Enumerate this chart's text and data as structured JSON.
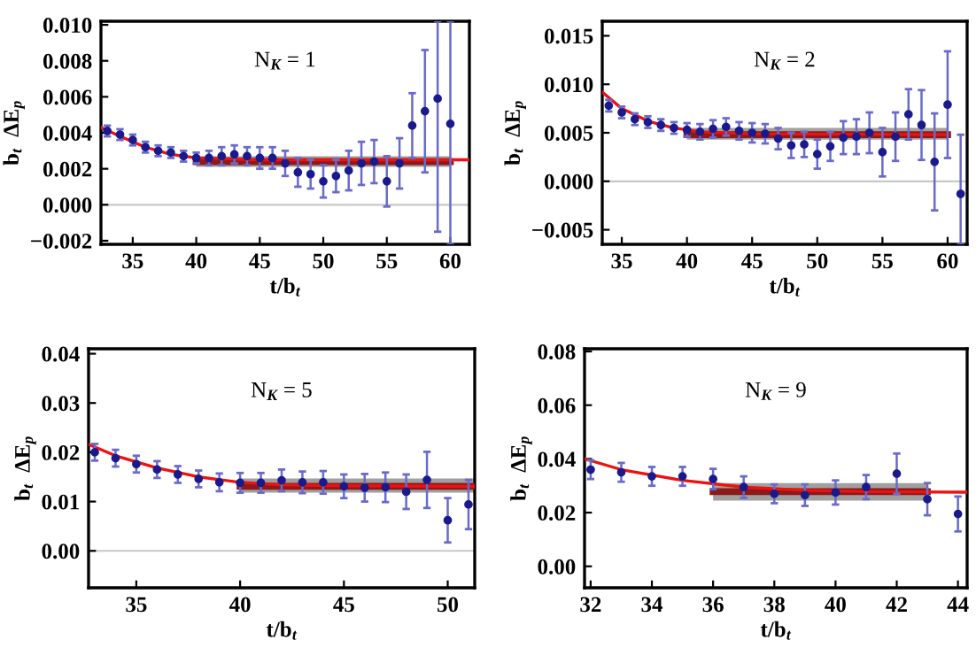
{
  "chart_data": [
    {
      "type": "scatter",
      "xlabel": "t/b$_{t}$",
      "ylabel": "b$_{t}$  ΔE$_{p}$",
      "annotations": [
        "N$_{K}$ = 1"
      ],
      "xlim": [
        32.5,
        61.5
      ],
      "ylim": [
        -0.0022,
        0.0102
      ],
      "xticks": [
        35,
        40,
        45,
        50,
        55,
        60
      ],
      "yticks": [
        {
          "value": -0.002,
          "label": "−0.002"
        },
        {
          "value": 0,
          "label": "0.000"
        },
        {
          "value": 0.002,
          "label": "0.002"
        },
        {
          "value": 0.004,
          "label": "0.004"
        },
        {
          "value": 0.006,
          "label": "0.006"
        },
        {
          "value": 0.008,
          "label": "0.008"
        },
        {
          "value": 0.01,
          "label": "0.010"
        }
      ],
      "grid": false,
      "ref_lines": [
        {
          "axis": "y",
          "value": 0,
          "color": "#c8c8c8"
        }
      ],
      "series": [
        {
          "type": "line",
          "color": "#8b1a1a",
          "x": [
            40,
            60
          ],
          "values": [
            0.0024,
            0.0024
          ],
          "lower": [
            0.0021,
            0.0021
          ],
          "upper": [
            0.0027,
            0.0027
          ]
        },
        {
          "type": "line",
          "color": "#ee1111",
          "x": [
            32.5,
            34,
            36,
            38,
            40,
            45,
            61.5
          ],
          "values": [
            0.0043,
            0.0038,
            0.0032,
            0.0028,
            0.0026,
            0.0025,
            0.0025
          ]
        },
        {
          "color": "#1a1a8c",
          "marker": "circle",
          "x": [
            33,
            34,
            35,
            36,
            37,
            38,
            39,
            40,
            41,
            42,
            43,
            44,
            45,
            46,
            47,
            48,
            49,
            50,
            51,
            52,
            53,
            54,
            55,
            56,
            57,
            58,
            59,
            60
          ],
          "values": [
            0.0041,
            0.0039,
            0.0036,
            0.0032,
            0.003,
            0.0029,
            0.0027,
            0.0026,
            0.0026,
            0.0027,
            0.0028,
            0.0027,
            0.0026,
            0.0026,
            0.0023,
            0.0018,
            0.0017,
            0.0013,
            0.0016,
            0.0019,
            0.0023,
            0.0024,
            0.0013,
            0.0023,
            0.0044,
            0.0052,
            0.0059,
            0.0045
          ],
          "errors": [
            0.0003,
            0.0003,
            0.0003,
            0.0003,
            0.0003,
            0.0003,
            0.0003,
            0.0003,
            0.0004,
            0.0005,
            0.0005,
            0.0005,
            0.0006,
            0.0006,
            0.0007,
            0.0008,
            0.0008,
            0.0009,
            0.0009,
            0.0011,
            0.0012,
            0.0012,
            0.0014,
            0.0014,
            0.0018,
            0.0034,
            [
              -0.0015,
              0.0102
            ],
            [
              -0.0022,
              0.0102
            ]
          ]
        }
      ]
    },
    {
      "type": "scatter",
      "xlabel": "t/b$_{t}$",
      "ylabel": "b$_{t}$  ΔE$_{p}$",
      "annotations": [
        "N$_{K}$ = 2"
      ],
      "xlim": [
        33.5,
        61.5
      ],
      "ylim": [
        -0.0065,
        0.0165
      ],
      "xticks": [
        35,
        40,
        45,
        50,
        55,
        60
      ],
      "yticks": [
        {
          "value": -0.005,
          "label": "−0.005"
        },
        {
          "value": 0,
          "label": "0.000"
        },
        {
          "value": 0.005,
          "label": "0.005"
        },
        {
          "value": 0.01,
          "label": "0.010"
        },
        {
          "value": 0.015,
          "label": "0.015"
        }
      ],
      "grid": false,
      "ref_lines": [
        {
          "axis": "y",
          "value": 0,
          "color": "#c8c8c8"
        }
      ],
      "series": [
        {
          "type": "line",
          "color": "#8b1a1a",
          "x": [
            40,
            60
          ],
          "values": [
            0.0048,
            0.0048
          ],
          "lower": [
            0.0043,
            0.0043
          ],
          "upper": [
            0.0055,
            0.0055
          ]
        },
        {
          "type": "line",
          "color": "#ee1111",
          "x": [
            33.5,
            35,
            37,
            39,
            41,
            45,
            60
          ],
          "values": [
            0.0092,
            0.0075,
            0.0062,
            0.0055,
            0.0051,
            0.0049,
            0.0048
          ]
        },
        {
          "color": "#1a1a8c",
          "marker": "circle",
          "x": [
            34,
            35,
            36,
            37,
            38,
            39,
            40,
            41,
            42,
            43,
            44,
            45,
            46,
            47,
            48,
            49,
            50,
            51,
            52,
            53,
            54,
            55,
            56,
            57,
            58,
            59,
            60,
            61
          ],
          "values": [
            0.0078,
            0.0071,
            0.0064,
            0.0061,
            0.0058,
            0.0055,
            0.0053,
            0.0051,
            0.0054,
            0.0056,
            0.0052,
            0.005,
            0.0049,
            0.0044,
            0.0037,
            0.0038,
            0.0028,
            0.0036,
            0.0045,
            0.0046,
            0.005,
            0.003,
            0.0046,
            0.0069,
            0.0058,
            0.002,
            0.0079,
            -0.0013
          ],
          "errors": [
            0.0006,
            0.0006,
            0.0006,
            0.0006,
            0.0006,
            0.0006,
            0.0007,
            0.0008,
            0.0009,
            0.0009,
            0.0009,
            0.001,
            0.001,
            0.0011,
            0.0013,
            0.0013,
            0.0015,
            0.0015,
            0.0017,
            0.0018,
            0.0021,
            0.0025,
            0.0025,
            0.0026,
            0.0036,
            0.005,
            0.0055,
            [
              -0.0065,
              0.0048
            ]
          ]
        }
      ]
    },
    {
      "type": "scatter",
      "xlabel": "t/b$_{t}$",
      "ylabel": "b$_{t}$  ΔE$_{p}$",
      "annotations": [
        "N$_{K}$ = 5"
      ],
      "xlim": [
        32.7,
        51.3
      ],
      "ylim": [
        -0.0075,
        0.041
      ],
      "xticks": [
        35,
        40,
        45,
        50
      ],
      "yticks": [
        {
          "value": 0,
          "label": "0.00"
        },
        {
          "value": 0.01,
          "label": "0.01"
        },
        {
          "value": 0.02,
          "label": "0.02"
        },
        {
          "value": 0.03,
          "label": "0.03"
        },
        {
          "value": 0.04,
          "label": "0.04"
        }
      ],
      "grid": false,
      "ref_lines": [
        {
          "axis": "y",
          "value": 0,
          "color": "#c8c8c8"
        }
      ],
      "series": [
        {
          "type": "line",
          "color": "#8b1a1a",
          "x": [
            40,
            51.3
          ],
          "values": [
            0.0131,
            0.0131
          ],
          "lower": [
            0.0118,
            0.0118
          ],
          "upper": [
            0.0147,
            0.0147
          ]
        },
        {
          "type": "line",
          "color": "#ee1111",
          "x": [
            32.7,
            34,
            36,
            38,
            40,
            42,
            45,
            51.3
          ],
          "values": [
            0.0216,
            0.0193,
            0.0168,
            0.015,
            0.0139,
            0.0134,
            0.0132,
            0.0131
          ]
        },
        {
          "color": "#1a1a8c",
          "marker": "circle",
          "x": [
            33,
            34,
            35,
            36,
            37,
            38,
            39,
            40,
            41,
            42,
            43,
            44,
            45,
            46,
            47,
            48,
            49,
            50,
            51
          ],
          "values": [
            0.02,
            0.0188,
            0.0176,
            0.0165,
            0.0155,
            0.0146,
            0.0139,
            0.0138,
            0.0138,
            0.0143,
            0.0139,
            0.0139,
            0.0131,
            0.0128,
            0.0129,
            0.012,
            0.0144,
            0.0062,
            0.0094
          ],
          "errors": [
            0.0017,
            0.0017,
            0.0017,
            0.0017,
            0.0017,
            0.0017,
            0.0018,
            0.002,
            0.002,
            0.0022,
            0.0022,
            0.0023,
            0.0024,
            0.0028,
            0.003,
            0.0035,
            0.0057,
            0.0045,
            0.005
          ]
        }
      ]
    },
    {
      "type": "scatter",
      "xlabel": "t/b$_{t}$",
      "ylabel": "b$_{t}$  ΔE$_{p}$",
      "annotations": [
        "N$_{K}$ = 9"
      ],
      "xlim": [
        31.8,
        44.3
      ],
      "ylim": [
        -0.008,
        0.081
      ],
      "xticks": [
        32,
        34,
        36,
        38,
        40,
        42,
        44
      ],
      "yticks": [
        {
          "value": 0,
          "label": "0.00"
        },
        {
          "value": 0.02,
          "label": "0.02"
        },
        {
          "value": 0.04,
          "label": "0.04"
        },
        {
          "value": 0.06,
          "label": "0.06"
        },
        {
          "value": 0.08,
          "label": "0.08"
        }
      ],
      "grid": false,
      "series": [
        {
          "type": "line",
          "color": "#8b1a1a",
          "x": [
            36,
            43
          ],
          "values": [
            0.0278,
            0.0278
          ],
          "lower": [
            0.0245,
            0.0245
          ],
          "upper": [
            0.031,
            0.031
          ]
        },
        {
          "type": "line",
          "color": "#ee1111",
          "x": [
            31.8,
            33,
            35,
            37,
            39,
            41,
            44.3
          ],
          "values": [
            0.04,
            0.036,
            0.032,
            0.0295,
            0.0283,
            0.0278,
            0.0276
          ]
        },
        {
          "color": "#1a1a8c",
          "marker": "circle",
          "x": [
            32,
            33,
            34,
            35,
            36,
            37,
            38,
            39,
            40,
            41,
            42,
            43,
            44
          ],
          "values": [
            0.036,
            0.035,
            0.0335,
            0.0335,
            0.0325,
            0.0295,
            0.027,
            0.0265,
            0.0275,
            0.0295,
            0.0345,
            0.025,
            0.0195
          ],
          "errors": [
            0.0035,
            0.0035,
            0.0035,
            0.0035,
            0.0038,
            0.004,
            0.0035,
            0.004,
            0.0045,
            0.0045,
            0.0075,
            0.006,
            0.0065
          ]
        }
      ]
    }
  ]
}
